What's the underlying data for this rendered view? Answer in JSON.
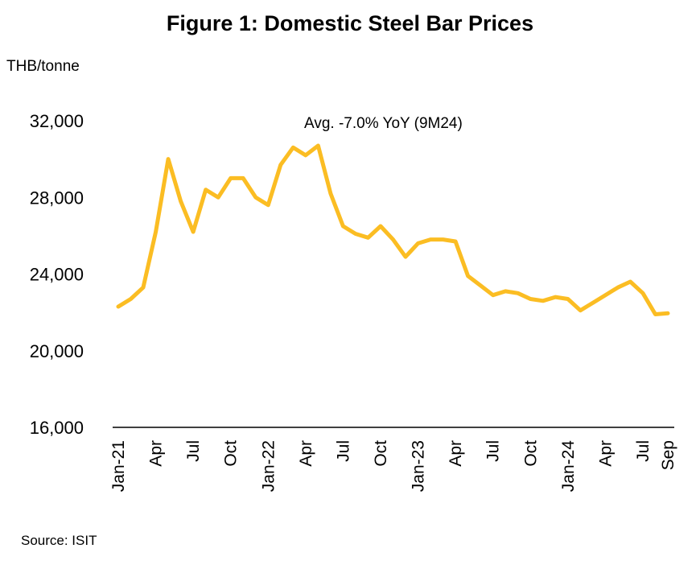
{
  "title": "Figure 1: Domestic Steel Bar Prices",
  "y_unit": "THB/tonne",
  "annotation": "Avg. -7.0% YoY (9M24)",
  "source": "Source: ISIT",
  "colors": {
    "line": "#FBBD23",
    "axis": "#000000"
  },
  "chart_data": {
    "type": "line",
    "title": "Figure 1: Domestic Steel Bar Prices",
    "ylabel": "THB/tonne",
    "xlabel": "",
    "ylim": [
      16000,
      32000
    ],
    "yticks": [
      16000,
      20000,
      24000,
      28000,
      32000
    ],
    "ytick_labels": [
      "16,000",
      "20,000",
      "24,000",
      "28,000",
      "32,000"
    ],
    "grid": false,
    "x": [
      "Jan-21",
      "Feb-21",
      "Mar-21",
      "Apr-21",
      "May-21",
      "Jun-21",
      "Jul-21",
      "Aug-21",
      "Sep-21",
      "Oct-21",
      "Nov-21",
      "Dec-21",
      "Jan-22",
      "Feb-22",
      "Mar-22",
      "Apr-22",
      "May-22",
      "Jun-22",
      "Jul-22",
      "Aug-22",
      "Sep-22",
      "Oct-22",
      "Nov-22",
      "Dec-22",
      "Jan-23",
      "Feb-23",
      "Mar-23",
      "Apr-23",
      "May-23",
      "Jun-23",
      "Jul-23",
      "Aug-23",
      "Sep-23",
      "Oct-23",
      "Nov-23",
      "Dec-23",
      "Jan-24",
      "Feb-24",
      "Mar-24",
      "Apr-24",
      "May-24",
      "Jun-24",
      "Jul-24",
      "Aug-24",
      "Sep-24"
    ],
    "xtick_labels": [
      {
        "index": 0,
        "label": "Jan-21"
      },
      {
        "index": 3,
        "label": "Apr"
      },
      {
        "index": 6,
        "label": "Jul"
      },
      {
        "index": 9,
        "label": "Oct"
      },
      {
        "index": 12,
        "label": "Jan-22"
      },
      {
        "index": 15,
        "label": "Apr"
      },
      {
        "index": 18,
        "label": "Jul"
      },
      {
        "index": 21,
        "label": "Oct"
      },
      {
        "index": 24,
        "label": "Jan-23"
      },
      {
        "index": 27,
        "label": "Apr"
      },
      {
        "index": 30,
        "label": "Jul"
      },
      {
        "index": 33,
        "label": "Oct"
      },
      {
        "index": 36,
        "label": "Jan-24"
      },
      {
        "index": 39,
        "label": "Apr"
      },
      {
        "index": 42,
        "label": "Jul"
      },
      {
        "index": 44,
        "label": "Sep"
      }
    ],
    "series": [
      {
        "values": [
          22300,
          22700,
          23300,
          26200,
          30000,
          27800,
          26200,
          28400,
          28000,
          29000,
          29000,
          28000,
          27600,
          29700,
          30600,
          30200,
          30700,
          28200,
          26500,
          26100,
          25900,
          26500,
          25800,
          24900,
          25600,
          25800,
          25800,
          25700,
          23900,
          23400,
          22900,
          23100,
          23000,
          22700,
          22600,
          22800,
          22700,
          22100,
          22500,
          22900,
          23300,
          23600,
          23000,
          21900,
          21950
        ]
      }
    ]
  }
}
